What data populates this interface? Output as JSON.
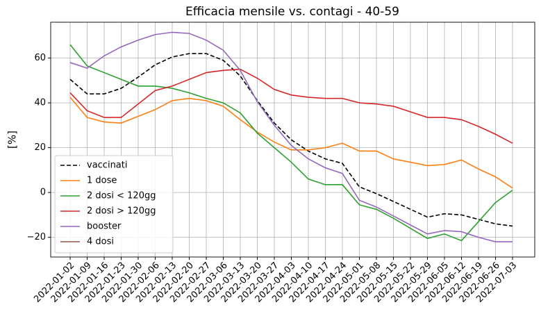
{
  "chart_data": {
    "type": "line",
    "title": "Efficacia mensile vs. contagi - 40-59",
    "ylabel": "[%]",
    "categories": [
      "2022-01-02",
      "2022-01-09",
      "2022-01-16",
      "2022-01-23",
      "2022-01-30",
      "2022-02-06",
      "2022-02-13",
      "2022-02-20",
      "2022-02-27",
      "2022-03-06",
      "2022-03-13",
      "2022-03-20",
      "2022-03-27",
      "2022-04-03",
      "2022-04-10",
      "2022-04-17",
      "2022-04-24",
      "2022-05-01",
      "2022-05-08",
      "2022-05-15",
      "2022-05-22",
      "2022-05-29",
      "2022-06-05",
      "2022-06-12",
      "2022-06-19",
      "2022-06-26",
      "2022-07-03"
    ],
    "series": [
      {
        "name": "vaccinati",
        "color": "#000000",
        "dash": "dashed",
        "values": [
          50.5,
          44,
          44,
          46.5,
          51.5,
          57,
          60.5,
          62,
          62,
          59,
          52,
          41,
          31,
          23.5,
          18.5,
          15,
          13,
          2.5,
          -0.5,
          -4,
          -7.5,
          -11,
          -9.5,
          -10,
          -12,
          -14,
          -15
        ]
      },
      {
        "name": "1 dose",
        "color": "#ff7f0e",
        "values": [
          42.5,
          33.5,
          31.5,
          31,
          34,
          37,
          41,
          42,
          41,
          38.5,
          32.5,
          27,
          22.5,
          19,
          19,
          20,
          22,
          18.5,
          18.5,
          15,
          13.5,
          12,
          12.5,
          14.5,
          10.5,
          7,
          2
        ]
      },
      {
        "name": "2 dosi < 120gg",
        "color": "#2ca02c",
        "values": [
          66,
          56.5,
          53.5,
          50.5,
          47.5,
          47.5,
          46.5,
          44.5,
          42,
          40,
          35.5,
          26.5,
          20,
          13.5,
          6,
          3.5,
          3.5,
          -5.5,
          -7.5,
          -11.5,
          -16,
          -20.5,
          -18.5,
          -21.5,
          -13,
          -4.5,
          1
        ]
      },
      {
        "name": "2 dosi > 120gg",
        "color": "#d62728",
        "values": [
          44.5,
          36.5,
          33.5,
          33.5,
          39.5,
          45.5,
          47.5,
          50.5,
          53.5,
          54.5,
          55,
          51,
          46,
          43.5,
          42.5,
          42,
          42,
          40,
          39.5,
          38.5,
          36,
          33.5,
          33.5,
          32.5,
          29.5,
          26,
          22
        ]
      },
      {
        "name": "booster",
        "color": "#9467bd",
        "values": [
          58,
          55.5,
          61,
          65,
          68,
          70.5,
          71.5,
          71,
          68,
          63.5,
          54.5,
          40.5,
          30,
          21,
          15,
          11,
          8.5,
          -3.5,
          -6.5,
          -10.5,
          -14.5,
          -18.5,
          -17,
          -17.5,
          -20,
          -22,
          -22
        ]
      },
      {
        "name": "4 dosi",
        "color": "#8c564b",
        "values": [
          null,
          null,
          null,
          null,
          null,
          null,
          null,
          null,
          null,
          null,
          null,
          null,
          null,
          null,
          null,
          null,
          null,
          null,
          null,
          null,
          null,
          null,
          null,
          null,
          null,
          null,
          null
        ]
      }
    ],
    "ylim": [
      -28.8,
      76
    ],
    "yticks": [
      {
        "value": -20,
        "label": "−20"
      },
      0,
      20,
      40,
      60
    ],
    "grid": true,
    "legend": "lower left"
  }
}
